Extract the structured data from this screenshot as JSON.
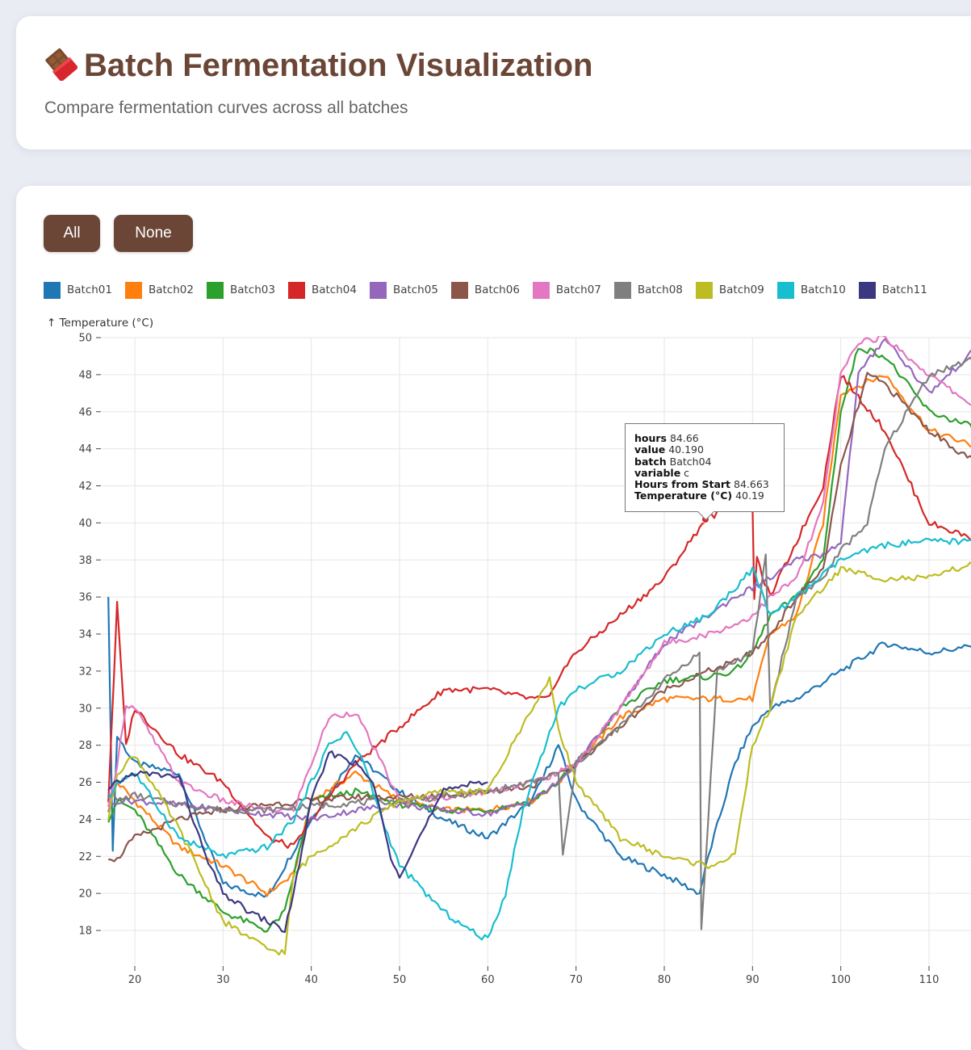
{
  "header": {
    "title": "Batch Fermentation Visualization",
    "subtitle": "Compare fermentation curves across all batches",
    "icon": "chocolate-bar-icon"
  },
  "controls": {
    "all_label": "All",
    "none_label": "None"
  },
  "colors": {
    "brand": "#6b4637"
  },
  "tooltip": {
    "rows": [
      {
        "key": "hours",
        "value": "84.66"
      },
      {
        "key": "value",
        "value": "40.190"
      },
      {
        "key": "batch",
        "value": "Batch04"
      },
      {
        "key": "variable",
        "value": "c"
      },
      {
        "key": "Hours from Start",
        "value": "84.663"
      },
      {
        "key": "Temperature (°C)",
        "value": "40.19"
      }
    ],
    "point": {
      "x": 84.66,
      "y": 40.19
    }
  },
  "chart_data": {
    "type": "line",
    "title": "",
    "xlabel": "",
    "ylabel": "↑ Temperature (°C)",
    "xlim": [
      16,
      116
    ],
    "ylim": [
      16,
      50
    ],
    "xticks": [
      20,
      30,
      40,
      50,
      60,
      70,
      80,
      90,
      100,
      110
    ],
    "yticks": [
      18,
      20,
      22,
      24,
      26,
      28,
      30,
      32,
      34,
      36,
      38,
      40,
      42,
      44,
      46,
      48,
      50
    ],
    "grid": true,
    "legend_position": "top-left",
    "series": [
      {
        "name": "Batch01",
        "color": "#1f77b4",
        "x": [
          17,
          17.5,
          18,
          20,
          25,
          30,
          35,
          40,
          45,
          50,
          55,
          60,
          65,
          68,
          70,
          75,
          80,
          84,
          85,
          88,
          90,
          92,
          95,
          100,
          105,
          110,
          116
        ],
        "y": [
          36,
          22.3,
          28.5,
          27,
          26.5,
          20.5,
          19.8,
          24,
          27.5,
          25.5,
          24,
          23,
          25,
          28,
          25,
          22,
          21,
          20,
          22,
          27,
          29,
          30,
          30.5,
          32,
          33.5,
          33,
          33.4
        ]
      },
      {
        "name": "Batch02",
        "color": "#ff7f0e",
        "x": [
          17,
          18,
          20,
          25,
          30,
          35,
          38,
          40,
          45,
          50,
          55,
          60,
          65,
          68,
          70,
          75,
          80,
          85,
          88,
          90,
          92,
          95,
          98,
          100,
          105,
          110,
          116
        ],
        "y": [
          24.5,
          26,
          25,
          22.5,
          21.5,
          20,
          21,
          25,
          26.5,
          25,
          24.5,
          24.5,
          25,
          26,
          27,
          29.5,
          30.5,
          30.5,
          30.5,
          30.5,
          34,
          35,
          40,
          47,
          48,
          45,
          44
        ]
      },
      {
        "name": "Batch03",
        "color": "#2ca02c",
        "x": [
          17,
          18,
          20,
          25,
          30,
          35,
          37,
          40,
          45,
          50,
          55,
          60,
          65,
          68,
          70,
          75,
          80,
          85,
          88,
          90,
          92,
          95,
          98,
          100,
          102,
          105,
          110,
          116
        ],
        "y": [
          24,
          25,
          24.5,
          21,
          19,
          18,
          19,
          25,
          25.5,
          24.8,
          24.5,
          24.5,
          25,
          26,
          27,
          30,
          31.5,
          31.7,
          32,
          33,
          35,
          36,
          38,
          46,
          49.5,
          49,
          46,
          45
        ]
      },
      {
        "name": "Batch04",
        "color": "#d62728",
        "x": [
          17,
          18,
          19,
          20,
          25,
          30,
          35,
          38,
          40,
          45,
          50,
          55,
          60,
          65,
          67,
          68,
          70,
          75,
          80,
          84.66,
          88,
          90,
          90.2,
          90.5,
          92,
          95,
          98,
          100,
          105,
          110,
          116
        ],
        "y": [
          25,
          35.6,
          28,
          30,
          27.5,
          26,
          23,
          22.5,
          24,
          27,
          29,
          31,
          31,
          30.5,
          30.5,
          31.7,
          33,
          35,
          37,
          40.19,
          41,
          41,
          36,
          38,
          36,
          39,
          42,
          48,
          45,
          40,
          39
        ]
      },
      {
        "name": "Batch05",
        "color": "#9467bd",
        "x": [
          17,
          18,
          20,
          25,
          30,
          35,
          40,
          45,
          50,
          55,
          60,
          65,
          68,
          70,
          75,
          80,
          85,
          88,
          90,
          92,
          95,
          98,
          100,
          102,
          105,
          110,
          116
        ],
        "y": [
          24.5,
          25,
          25,
          24.8,
          24.5,
          24.3,
          24,
          24.5,
          24.8,
          24.5,
          24.3,
          25,
          26,
          27,
          30,
          33.5,
          35,
          36,
          36.5,
          37,
          38,
          38.3,
          39,
          48,
          50,
          47,
          49.7
        ]
      },
      {
        "name": "Batch06",
        "color": "#8c564b",
        "x": [
          17,
          18,
          19,
          20,
          25,
          30,
          35,
          40,
          45,
          50,
          55,
          60,
          65,
          68,
          70,
          75,
          80,
          85,
          88,
          90,
          92,
          95,
          98,
          100,
          103,
          105,
          110,
          116
        ],
        "y": [
          22,
          21.8,
          22.5,
          23,
          24,
          24.5,
          24.8,
          25,
          25.2,
          25.2,
          25.3,
          25.5,
          25.8,
          26.5,
          27,
          29,
          31,
          32,
          32.5,
          33,
          34,
          36,
          37.5,
          43,
          48,
          47.5,
          45,
          43
        ]
      },
      {
        "name": "Batch07",
        "color": "#e377c2",
        "x": [
          17,
          18,
          19,
          20,
          25,
          30,
          35,
          38,
          40,
          42,
          45,
          48,
          50,
          55,
          60,
          65,
          68,
          70,
          75,
          80,
          85,
          88,
          90,
          92,
          95,
          98,
          100,
          102,
          105,
          110,
          116
        ],
        "y": [
          24.5,
          27,
          30.2,
          30,
          26,
          25,
          24.5,
          24.5,
          27,
          29.5,
          29.8,
          27,
          25,
          25.2,
          25.5,
          26,
          26.5,
          27,
          30,
          33.5,
          34,
          34.5,
          35,
          36,
          37,
          41,
          48,
          49.8,
          50,
          48,
          46
        ]
      },
      {
        "name": "Batch08",
        "color": "#7f7f7f",
        "x": [
          17,
          18,
          20,
          25,
          30,
          35,
          40,
          45,
          50,
          55,
          60,
          65,
          68,
          68.5,
          70,
          75,
          80,
          84,
          84.2,
          86,
          88,
          90,
          91.5,
          92,
          95,
          98,
          100,
          103,
          105,
          110,
          116
        ],
        "y": [
          25.5,
          25,
          25.3,
          24.8,
          24.5,
          24.5,
          24.7,
          24.9,
          25,
          25.2,
          25.5,
          26,
          26.5,
          22,
          27,
          29,
          31.5,
          33,
          18,
          32,
          32.5,
          33,
          38.3,
          30,
          36,
          37,
          38.5,
          40,
          44,
          48,
          49
        ]
      },
      {
        "name": "Batch09",
        "color": "#bcbd22",
        "x": [
          17,
          18,
          20,
          25,
          30,
          35,
          37,
          38,
          40,
          45,
          50,
          55,
          60,
          65,
          67,
          68,
          70,
          75,
          80,
          85,
          88,
          90,
          92,
          95,
          100,
          105,
          110,
          113,
          116
        ],
        "y": [
          24,
          26.5,
          27.5,
          23.5,
          18.5,
          17,
          16.8,
          21,
          22,
          23.5,
          25,
          25.5,
          25.5,
          30,
          31.5,
          29,
          26,
          23,
          22,
          21.5,
          22,
          28,
          30,
          35,
          37.5,
          37,
          37,
          37.5,
          38
        ]
      },
      {
        "name": "Batch10",
        "color": "#17becf",
        "x": [
          17,
          18,
          20,
          25,
          30,
          35,
          38,
          40,
          42,
          44,
          46,
          48,
          50,
          55,
          58,
          60,
          62,
          64,
          65,
          68,
          70,
          75,
          80,
          85,
          88,
          90,
          92,
          95,
          100,
          105,
          110,
          116
        ],
        "y": [
          25,
          26,
          26.5,
          23,
          22,
          22.5,
          24,
          26,
          28,
          28.7,
          27,
          24,
          21.5,
          19,
          18,
          17.5,
          20,
          24.5,
          26,
          30,
          31,
          32,
          34,
          35,
          36.5,
          37.5,
          35,
          36,
          38,
          38.8,
          39,
          39
        ]
      },
      {
        "name": "Batch11",
        "color": "#3b3881",
        "x": [
          17,
          18,
          20,
          25,
          28,
          30,
          33,
          35,
          37,
          38,
          40,
          42,
          43,
          45,
          47,
          49,
          50,
          55,
          58,
          60
        ],
        "y": [
          25.5,
          26,
          26.5,
          26.3,
          22,
          20,
          19,
          18.5,
          18,
          20,
          25,
          27.5,
          27.5,
          27,
          26,
          22,
          21,
          25.5,
          26,
          26
        ]
      }
    ]
  }
}
